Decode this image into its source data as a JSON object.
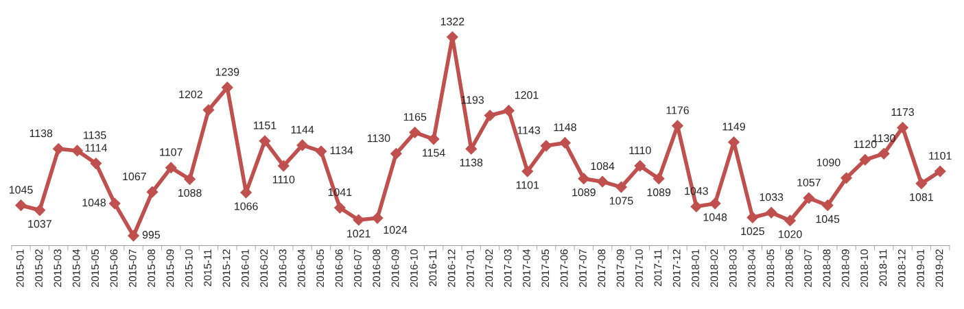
{
  "chart_data": {
    "type": "line",
    "categories": [
      "2015-01",
      "2015-02",
      "2015-03",
      "2015-04",
      "2015-05",
      "2015-06",
      "2015-07",
      "2015-08",
      "2015-09",
      "2015-10",
      "2015-11",
      "2015-12",
      "2016-01",
      "2016-02",
      "2016-03",
      "2016-04",
      "2016-05",
      "2016-06",
      "2016-07",
      "2016-08",
      "2016-09",
      "2016-10",
      "2016-11",
      "2016-12",
      "2017-01",
      "2017-02",
      "2017-03",
      "2017-04",
      "2017-05",
      "2017-06",
      "2017-07",
      "2017-08",
      "2017-09",
      "2017-10",
      "2017-11",
      "2017-12",
      "2018-01",
      "2018-02",
      "2018-03",
      "2018-04",
      "2018-05",
      "2018-06",
      "2018-07",
      "2018-08",
      "2018-09",
      "2018-10",
      "2018-11",
      "2018-12",
      "2019-01",
      "2019-02"
    ],
    "series": [
      {
        "color": "#c0504d",
        "values": [
          1045,
          1037,
          1138,
          1135,
          1114,
          1048,
          995,
          1067,
          1107,
          1088,
          1202,
          1239,
          1066,
          1151,
          1110,
          1144,
          1134,
          1041,
          1021,
          1024,
          1130,
          1165,
          1154,
          1322,
          1138,
          1193,
          1201,
          1101,
          1143,
          1148,
          1089,
          1084,
          1075,
          1110,
          1089,
          1176,
          1043,
          1048,
          1149,
          1025,
          1033,
          1020,
          1057,
          1045,
          1090,
          1120,
          1130,
          1173,
          1081,
          1101
        ]
      }
    ],
    "data_labels": true,
    "marker": "diamond",
    "line_style": "solid",
    "grid": false,
    "legend": false
  }
}
